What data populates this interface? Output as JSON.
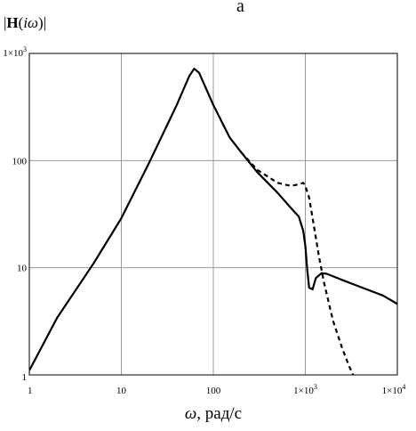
{
  "panel_label": "a",
  "chart_data": {
    "type": "line",
    "title": "",
    "ylabel": "|H(iω)|",
    "xlabel": "ω, рад/с",
    "x_scale": "log",
    "y_scale": "log",
    "xlim": [
      1,
      10000
    ],
    "ylim": [
      1,
      1000
    ],
    "grid": true,
    "x_ticks": [
      {
        "value": 1,
        "mantissa": "1",
        "exp": ""
      },
      {
        "value": 10,
        "mantissa": "10",
        "exp": ""
      },
      {
        "value": 100,
        "mantissa": "100",
        "exp": ""
      },
      {
        "value": 1000,
        "mantissa": "1×10",
        "exp": "3"
      },
      {
        "value": 10000,
        "mantissa": "1×10",
        "exp": "4"
      }
    ],
    "y_ticks": [
      {
        "value": 1,
        "mantissa": "1",
        "exp": ""
      },
      {
        "value": 10,
        "mantissa": "10",
        "exp": ""
      },
      {
        "value": 100,
        "mantissa": "100",
        "exp": ""
      },
      {
        "value": 1000,
        "mantissa": "1×10",
        "exp": "3"
      }
    ],
    "series": [
      {
        "style": "solid",
        "points": [
          [
            1,
            1.1
          ],
          [
            2,
            3.4
          ],
          [
            5,
            11
          ],
          [
            10,
            29
          ],
          [
            20,
            95
          ],
          [
            40,
            330
          ],
          [
            55,
            620
          ],
          [
            62,
            720
          ],
          [
            70,
            660
          ],
          [
            100,
            330
          ],
          [
            150,
            165
          ],
          [
            200,
            120
          ],
          [
            300,
            78
          ],
          [
            500,
            50
          ],
          [
            700,
            36
          ],
          [
            850,
            30
          ],
          [
            950,
            22
          ],
          [
            1000,
            16
          ],
          [
            1050,
            9.5
          ],
          [
            1100,
            6.5
          ],
          [
            1200,
            6.3
          ],
          [
            1300,
            8
          ],
          [
            1500,
            8.9
          ],
          [
            1700,
            8.8
          ],
          [
            2500,
            7.7
          ],
          [
            4000,
            6.6
          ],
          [
            7000,
            5.5
          ],
          [
            10000,
            4.6
          ]
        ]
      },
      {
        "style": "dashed",
        "points": [
          [
            200,
            120
          ],
          [
            300,
            82
          ],
          [
            500,
            62
          ],
          [
            700,
            58
          ],
          [
            850,
            60
          ],
          [
            950,
            62
          ],
          [
            1000,
            58
          ],
          [
            1100,
            45
          ],
          [
            1200,
            29
          ],
          [
            1400,
            13
          ],
          [
            1600,
            7.2
          ],
          [
            2000,
            3.2
          ],
          [
            2500,
            1.8
          ],
          [
            3000,
            1.2
          ],
          [
            3500,
            0.9
          ]
        ]
      }
    ]
  }
}
